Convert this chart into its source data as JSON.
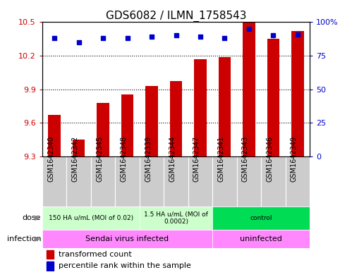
{
  "title": "GDS6082 / ILMN_1758543",
  "samples": [
    "GSM1642340",
    "GSM1642342",
    "GSM1642345",
    "GSM1642348",
    "GSM1642339",
    "GSM1642344",
    "GSM1642347",
    "GSM1642341",
    "GSM1642343",
    "GSM1642346",
    "GSM1642349"
  ],
  "bar_values": [
    9.67,
    9.45,
    9.78,
    9.85,
    9.93,
    9.97,
    10.17,
    10.19,
    10.5,
    10.35,
    10.42
  ],
  "percentile_values": [
    88,
    85,
    88,
    88,
    89,
    90,
    89,
    88,
    95,
    90,
    91
  ],
  "ylim_left": [
    9.3,
    10.5
  ],
  "ylim_right": [
    0,
    100
  ],
  "yticks_left": [
    9.3,
    9.6,
    9.9,
    10.2,
    10.5
  ],
  "yticks_right": [
    0,
    25,
    50,
    75,
    100
  ],
  "ytick_labels_left": [
    "9.3",
    "9.6",
    "9.9",
    "10.2",
    "10.5"
  ],
  "ytick_labels_right": [
    "0",
    "25",
    "50",
    "75",
    "100%"
  ],
  "bar_color": "#CC0000",
  "percentile_color": "#0000CC",
  "dose_groups": [
    {
      "label": "150 HA u/mL (MOI of 0.02)",
      "start": 0,
      "end": 4,
      "color": "#ccffcc"
    },
    {
      "label": "1.5 HA u/mL (MOI of\n0.0002)",
      "start": 4,
      "end": 7,
      "color": "#ccffcc"
    },
    {
      "label": "control",
      "start": 7,
      "end": 11,
      "color": "#00dd55"
    }
  ],
  "infection_groups": [
    {
      "label": "Sendai virus infected",
      "start": 0,
      "end": 7,
      "color": "#ff88ff"
    },
    {
      "label": "uninfected",
      "start": 7,
      "end": 11,
      "color": "#ff88ff"
    }
  ],
  "dose_label": "dose",
  "infection_label": "infection",
  "legend_bar_label": "transformed count",
  "legend_pct_label": "percentile rank within the sample",
  "sample_name_bg": "#cccccc",
  "background_color": "#ffffff",
  "title_fontsize": 11,
  "tick_fontsize": 8,
  "sample_fontsize": 7,
  "annotation_fontsize": 8,
  "legend_fontsize": 8
}
